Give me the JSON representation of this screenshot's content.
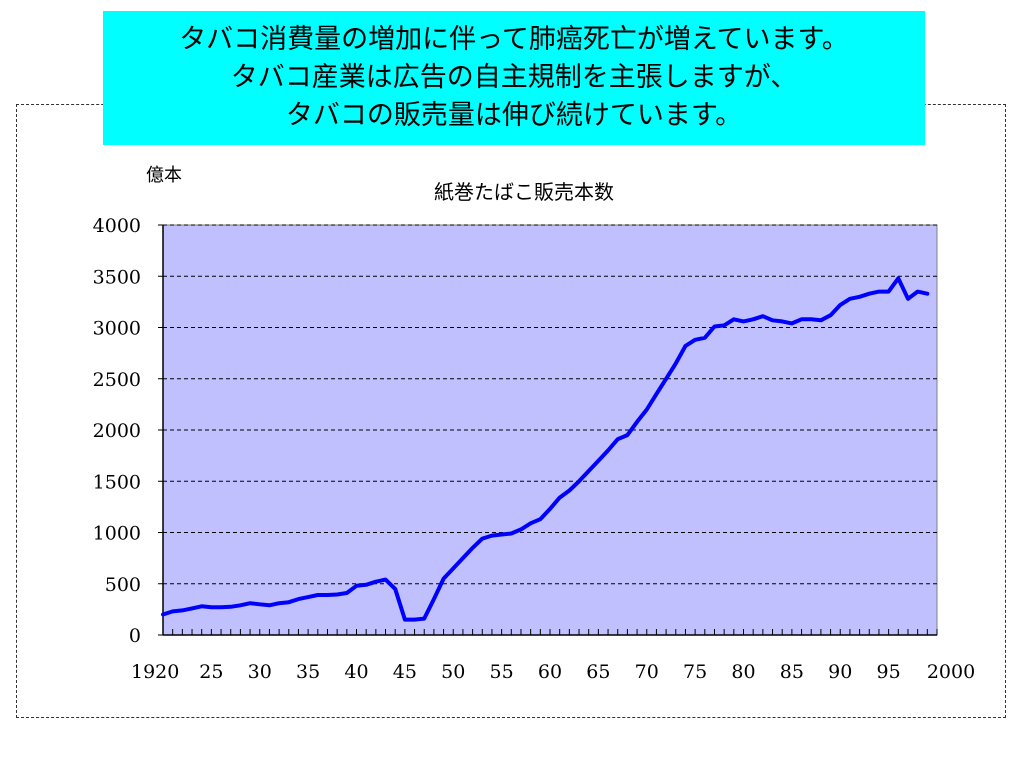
{
  "banner": {
    "lines": [
      "タバコ消費量の増加に伴って肺癌死亡が増えています。",
      "タバコ産業は広告の自主規制を主張しますが、",
      "タバコの販売量は伸び続けています。"
    ],
    "background": "#00ffff"
  },
  "chart_data": {
    "type": "line",
    "title": "紙巻たばこ販売本数",
    "ylabel": "億本",
    "xlabel": "",
    "xlim": [
      1920,
      2000
    ],
    "ylim": [
      0,
      4000
    ],
    "grid": true,
    "yticks": [
      0,
      500,
      1000,
      1500,
      2000,
      2500,
      3000,
      3500,
      4000
    ],
    "ytick_labels": [
      "0",
      "500",
      "1000",
      "1500",
      "2000",
      "2500",
      "3000",
      "3500",
      "4000"
    ],
    "xticks": [
      1920,
      1925,
      1930,
      1935,
      1940,
      1945,
      1950,
      1955,
      1960,
      1965,
      1970,
      1975,
      1980,
      1985,
      1990,
      1995,
      2000
    ],
    "xtick_labels": [
      "1920",
      "25",
      "30",
      "35",
      "40",
      "45",
      "50",
      "55",
      "60",
      "65",
      "70",
      "75",
      "80",
      "85",
      "90",
      "95",
      "2000"
    ],
    "colors": {
      "plot_bg": "#c0c0ff",
      "line": "#0000ff",
      "grid": "#000000"
    },
    "series": [
      {
        "x": [
          1920,
          1921,
          1922,
          1923,
          1924,
          1925,
          1926,
          1927,
          1928,
          1929,
          1930,
          1931,
          1932,
          1933,
          1934,
          1935,
          1936,
          1937,
          1938,
          1939,
          1940,
          1941,
          1942,
          1943,
          1944,
          1945,
          1946,
          1947,
          1948,
          1949,
          1950,
          1951,
          1952,
          1953,
          1954,
          1955,
          1956,
          1957,
          1958,
          1959,
          1960,
          1961,
          1962,
          1963,
          1964,
          1965,
          1966,
          1967,
          1968,
          1969,
          1970,
          1971,
          1972,
          1973,
          1974,
          1975,
          1976,
          1977,
          1978,
          1979,
          1980,
          1981,
          1982,
          1983,
          1984,
          1985,
          1986,
          1987,
          1988,
          1989,
          1990,
          1991,
          1992,
          1993,
          1994,
          1995,
          1996,
          1997,
          1998,
          1999
        ],
        "values": [
          200,
          230,
          240,
          260,
          280,
          270,
          270,
          275,
          290,
          310,
          300,
          290,
          310,
          320,
          350,
          370,
          390,
          390,
          395,
          410,
          480,
          490,
          520,
          540,
          450,
          150,
          150,
          160,
          350,
          550,
          650,
          750,
          850,
          940,
          970,
          980,
          990,
          1030,
          1090,
          1130,
          1230,
          1340,
          1410,
          1500,
          1600,
          1700,
          1800,
          1910,
          1950,
          2080,
          2200,
          2350,
          2500,
          2650,
          2820,
          2880,
          2900,
          3010,
          3020,
          3080,
          3060,
          3080,
          3110,
          3070,
          3060,
          3040,
          3080,
          3080,
          3070,
          3120,
          3220,
          3280,
          3300,
          3330,
          3350,
          3350,
          3480,
          3280,
          3350,
          3330
        ]
      }
    ]
  }
}
